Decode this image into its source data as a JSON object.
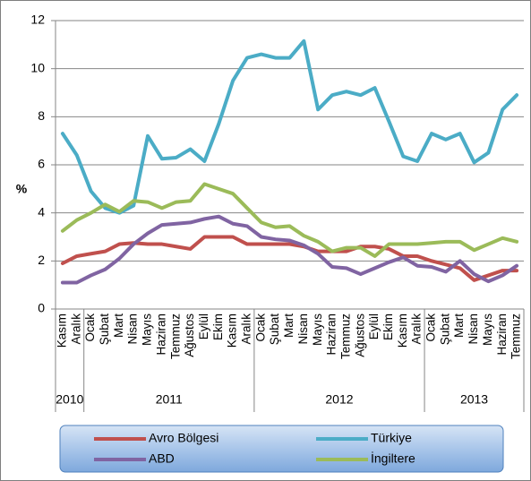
{
  "chart_data": {
    "type": "line",
    "ylabel": "%",
    "categories": [
      "Kasım",
      "Aralık",
      "Ocak",
      "Şubat",
      "Mart",
      "Nisan",
      "Mayıs",
      "Haziran",
      "Temmuz",
      "Ağustos",
      "Eylül",
      "Ekim",
      "Kasım",
      "Aralık",
      "Ocak",
      "Şubat",
      "Mart",
      "Nisan",
      "Mayıs",
      "Haziran",
      "Temmuz",
      "Ağustos",
      "Eylül",
      "Ekim",
      "Kasım",
      "Aralık",
      "Ocak",
      "Şubat",
      "Mart",
      "Nisan",
      "Mayıs",
      "Haziran",
      "Temmuz"
    ],
    "groups": [
      {
        "label": "2010",
        "count": 2
      },
      {
        "label": "2011",
        "count": 12
      },
      {
        "label": "2012",
        "count": 12
      },
      {
        "label": "2013",
        "count": 7
      }
    ],
    "series": [
      {
        "name": "Avro Bölgesi",
        "color": "#c0504d",
        "values": [
          1.9,
          2.2,
          2.3,
          2.4,
          2.7,
          2.75,
          2.7,
          2.7,
          2.6,
          2.5,
          3.0,
          3.0,
          3.0,
          2.7,
          2.7,
          2.7,
          2.7,
          2.6,
          2.4,
          2.4,
          2.4,
          2.6,
          2.6,
          2.5,
          2.2,
          2.2,
          2.0,
          1.85,
          1.7,
          1.2,
          1.4,
          1.6,
          1.6
        ]
      },
      {
        "name": "Türkiye",
        "color": "#4bacc6",
        "values": [
          7.3,
          6.4,
          4.9,
          4.2,
          4.0,
          4.3,
          7.2,
          6.25,
          6.3,
          6.65,
          6.15,
          7.7,
          9.5,
          10.45,
          10.6,
          10.45,
          10.45,
          11.15,
          8.3,
          8.9,
          9.05,
          8.9,
          9.2,
          7.8,
          6.35,
          6.15,
          7.3,
          7.05,
          7.3,
          6.1,
          6.5,
          8.3,
          8.9
        ]
      },
      {
        "name": "ABD",
        "color": "#8064a2",
        "values": [
          1.1,
          1.1,
          1.4,
          1.65,
          2.1,
          2.7,
          3.15,
          3.5,
          3.55,
          3.6,
          3.75,
          3.85,
          3.55,
          3.45,
          3.0,
          2.9,
          2.85,
          2.65,
          2.3,
          1.75,
          1.7,
          1.45,
          1.7,
          1.95,
          2.15,
          1.8,
          1.75,
          1.55,
          2.0,
          1.45,
          1.15,
          1.4,
          1.8
        ]
      },
      {
        "name": "İngiltere",
        "color": "#9bbb59",
        "values": [
          3.25,
          3.7,
          4.0,
          4.35,
          4.05,
          4.5,
          4.45,
          4.2,
          4.45,
          4.5,
          5.2,
          5.0,
          4.8,
          4.2,
          3.6,
          3.4,
          3.45,
          3.05,
          2.8,
          2.4,
          2.55,
          2.55,
          2.2,
          2.7,
          2.7,
          2.7,
          2.75,
          2.8,
          2.8,
          2.45,
          2.7,
          2.95,
          2.8
        ]
      }
    ],
    "ylim": [
      0,
      12
    ],
    "yticks": [
      0,
      2,
      4,
      6,
      8,
      10,
      12
    ],
    "grid": true
  }
}
